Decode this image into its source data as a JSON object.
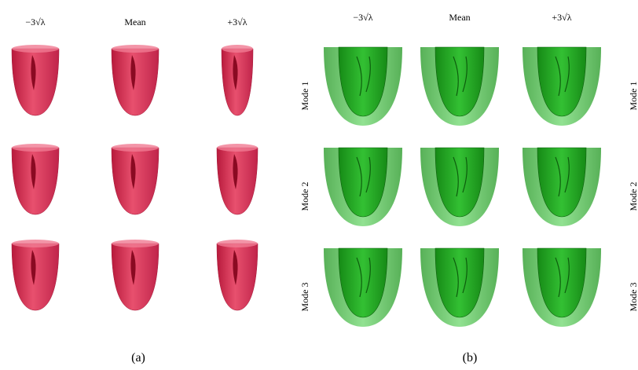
{
  "panel_a": {
    "columns": [
      "−3√λ",
      "Mean",
      "+3√λ"
    ],
    "caption": "(a)"
  },
  "panel_b": {
    "columns": [
      "−3√λ",
      "Mean",
      "+3√λ"
    ],
    "row_labels_left": [
      "Mode 1",
      "Mode 2",
      "Mode 3"
    ],
    "row_labels_right": [
      "Mode 1",
      "Mode 2",
      "Mode 3"
    ],
    "caption": "(b)"
  }
}
